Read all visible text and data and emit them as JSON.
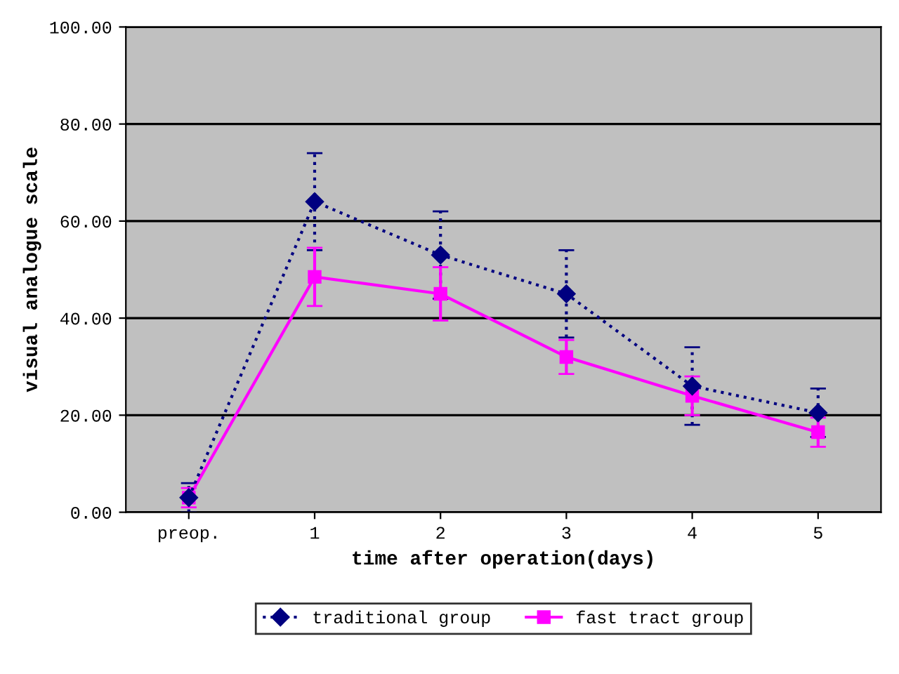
{
  "chart_data": {
    "type": "line",
    "xlabel": "time after operation(days)",
    "ylabel": "visual analogue scale",
    "categories": [
      "preop.",
      "1",
      "2",
      "3",
      "4",
      "5"
    ],
    "series": [
      {
        "name": "traditional group",
        "color": "#000080",
        "marker": "diamond",
        "line_style": "dotted",
        "values": [
          3,
          64,
          53,
          45,
          26,
          20.5
        ],
        "errors": [
          3,
          10,
          9,
          9,
          8,
          5
        ]
      },
      {
        "name": "fast tract group",
        "color": "#ff00ff",
        "marker": "square",
        "line_style": "solid",
        "values": [
          3,
          48.5,
          45,
          32,
          24,
          16.5
        ],
        "errors": [
          2,
          6,
          5.5,
          3.5,
          4,
          3
        ]
      }
    ],
    "ylim": [
      0,
      100
    ],
    "yticks": [
      {
        "value": 0,
        "label": "0.00"
      },
      {
        "value": 20,
        "label": "20.00"
      },
      {
        "value": 40,
        "label": "40.00"
      },
      {
        "value": 60,
        "label": "60.00"
      },
      {
        "value": 80,
        "label": "80.00"
      },
      {
        "value": 100,
        "label": "100.00"
      }
    ],
    "grid": "y",
    "legend": "bottom"
  }
}
